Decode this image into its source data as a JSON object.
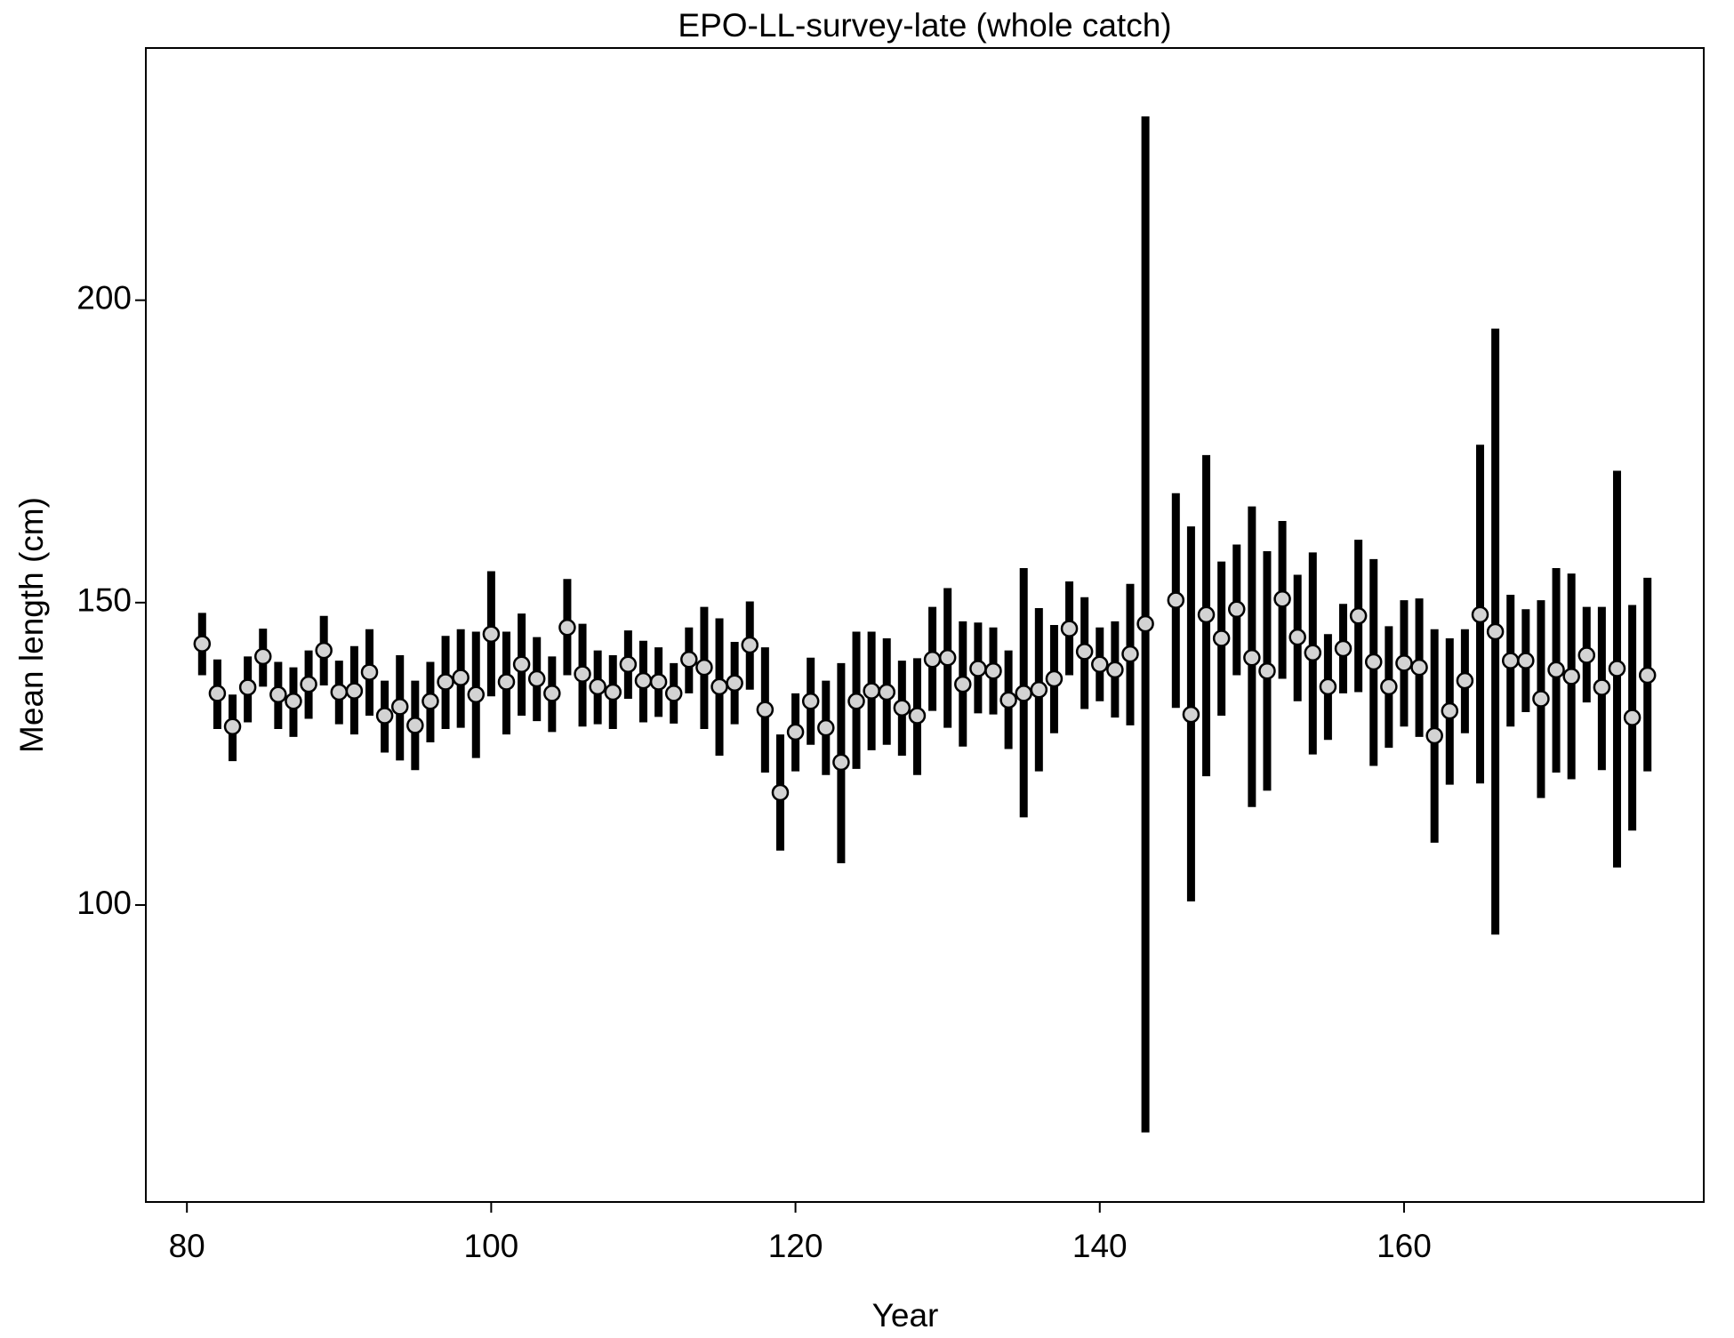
{
  "chart_data": {
    "type": "errorbar",
    "title": "EPO-LL-survey-late (whole catch)",
    "x_label": "Year",
    "y_label": "Mean length (cm)",
    "x": [
      81,
      82,
      83,
      84,
      85,
      86,
      87,
      88,
      89,
      90,
      91,
      92,
      93,
      94,
      95,
      96,
      97,
      98,
      99,
      100,
      101,
      102,
      103,
      104,
      105,
      106,
      107,
      108,
      109,
      110,
      111,
      112,
      113,
      114,
      115,
      116,
      117,
      118,
      119,
      120,
      121,
      122,
      123,
      124,
      125,
      126,
      127,
      128,
      129,
      130,
      131,
      132,
      133,
      134,
      135,
      136,
      137,
      138,
      139,
      140,
      141,
      142,
      143,
      145,
      146,
      147,
      148,
      149,
      150,
      151,
      152,
      153,
      154,
      155,
      156,
      157,
      158,
      159,
      160,
      161,
      162,
      163,
      164,
      165,
      166,
      167,
      168,
      169,
      170,
      171,
      172,
      173,
      174,
      175,
      176
    ],
    "values": [
      143.2,
      135.0,
      129.5,
      136.0,
      141.1,
      134.8,
      133.7,
      136.5,
      142.1,
      135.2,
      135.4,
      138.5,
      131.3,
      132.8,
      129.7,
      133.7,
      136.9,
      137.6,
      134.8,
      144.8,
      136.9,
      139.8,
      137.4,
      135.0,
      145.9,
      138.2,
      136.1,
      135.2,
      139.8,
      137.1,
      136.9,
      135.0,
      140.6,
      139.3,
      136.1,
      136.7,
      143.0,
      132.3,
      118.6,
      128.6,
      133.7,
      129.3,
      123.6,
      133.7,
      135.4,
      135.2,
      132.6,
      131.3,
      140.6,
      140.9,
      136.5,
      139.1,
      138.7,
      133.9,
      135.0,
      135.6,
      137.4,
      145.7,
      141.9,
      139.8,
      138.9,
      141.5,
      146.5,
      150.4,
      131.5,
      148.0,
      144.1,
      148.9,
      140.9,
      138.7,
      150.6,
      144.3,
      141.7,
      136.1,
      142.4,
      147.8,
      140.2,
      136.1,
      140.0,
      139.3,
      128.0,
      132.1,
      137.1,
      148.0,
      145.2,
      140.4,
      140.4,
      134.1,
      138.9,
      137.8,
      141.3,
      136.0,
      139.1,
      131.0,
      138.0
    ],
    "lower": [
      138.0,
      129.1,
      123.8,
      130.2,
      136.1,
      129.1,
      127.8,
      130.8,
      136.3,
      129.9,
      128.2,
      131.3,
      125.2,
      123.9,
      122.3,
      126.9,
      129.1,
      129.3,
      124.3,
      134.5,
      128.2,
      131.3,
      130.4,
      128.6,
      138.0,
      129.5,
      129.9,
      129.1,
      134.1,
      130.2,
      131.1,
      130.0,
      135.0,
      129.1,
      124.7,
      129.9,
      135.6,
      121.9,
      109.0,
      122.1,
      126.5,
      121.5,
      106.9,
      122.5,
      125.6,
      126.5,
      124.7,
      121.5,
      132.1,
      129.3,
      126.2,
      131.7,
      131.5,
      125.8,
      114.5,
      122.1,
      128.4,
      138.0,
      132.4,
      133.7,
      131.0,
      129.7,
      62.4,
      132.6,
      100.6,
      121.3,
      131.3,
      138.0,
      116.2,
      118.9,
      137.4,
      133.7,
      124.9,
      127.3,
      135.0,
      135.2,
      123.0,
      126.0,
      129.5,
      127.8,
      110.3,
      119.9,
      128.4,
      120.1,
      95.1,
      129.5,
      131.9,
      117.7,
      121.9,
      120.8,
      133.5,
      122.3,
      106.2,
      112.3,
      122.1
    ],
    "upper": [
      148.3,
      140.6,
      134.8,
      141.1,
      145.7,
      140.2,
      139.3,
      142.1,
      147.8,
      140.4,
      142.8,
      145.6,
      137.1,
      141.3,
      137.1,
      140.2,
      144.5,
      145.6,
      145.2,
      155.2,
      145.2,
      148.2,
      144.3,
      141.1,
      153.9,
      146.5,
      142.1,
      141.3,
      145.4,
      143.7,
      142.6,
      140.0,
      145.9,
      149.3,
      147.4,
      143.5,
      150.2,
      142.6,
      128.2,
      135.0,
      140.9,
      137.1,
      140.0,
      145.2,
      145.2,
      144.1,
      140.4,
      140.8,
      149.3,
      152.4,
      146.9,
      146.7,
      145.9,
      142.1,
      155.7,
      149.1,
      146.3,
      153.5,
      150.9,
      145.9,
      146.9,
      153.1,
      230.4,
      168.1,
      162.6,
      174.4,
      156.8,
      159.6,
      165.9,
      158.5,
      163.5,
      154.6,
      158.3,
      144.8,
      149.8,
      160.4,
      157.2,
      146.1,
      150.4,
      150.7,
      145.6,
      144.1,
      145.6,
      176.1,
      195.3,
      151.3,
      148.9,
      150.4,
      155.7,
      154.8,
      149.3,
      149.3,
      171.8,
      149.6,
      154.1
    ],
    "bar_color": "#000000",
    "point_color": "#d3d3d3",
    "xlim": [
      77.3,
      179.7
    ],
    "ylim": [
      50.9,
      241.7
    ],
    "xticks": [
      80,
      100,
      120,
      140,
      160
    ],
    "yticks": [
      100,
      150,
      200
    ]
  }
}
